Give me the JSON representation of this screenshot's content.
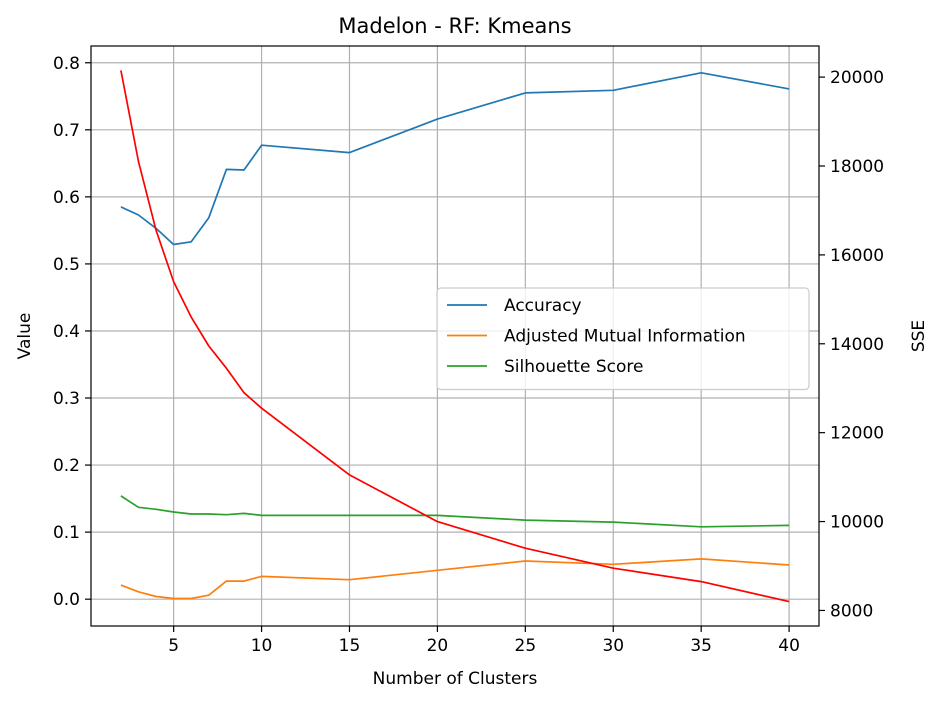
{
  "chart_data": {
    "type": "line",
    "title": "Madelon - RF: Kmeans",
    "xlabel": "Number of Clusters",
    "ylabel": "Value",
    "y2label": "SSE",
    "xlim": [
      0.3,
      41.7
    ],
    "ylim": [
      -0.04,
      0.825
    ],
    "y2lim": [
      7650,
      20700
    ],
    "xticks": [
      5,
      10,
      15,
      20,
      25,
      30,
      35,
      40
    ],
    "yticks": [
      0.0,
      0.1,
      0.2,
      0.3,
      0.4,
      0.5,
      0.6,
      0.7,
      0.8
    ],
    "y2ticks": [
      8000,
      10000,
      12000,
      14000,
      16000,
      18000,
      20000
    ],
    "grid": true,
    "legend_position": "center-right",
    "x": [
      2,
      3,
      4,
      5,
      6,
      7,
      8,
      9,
      10,
      15,
      20,
      25,
      30,
      35,
      40
    ],
    "series": [
      {
        "name": "Accuracy",
        "color": "#1f77b4",
        "axis": "left",
        "in_legend": true,
        "values": [
          0.585,
          0.573,
          0.553,
          0.529,
          0.533,
          0.569,
          0.641,
          0.64,
          0.677,
          0.666,
          0.716,
          0.755,
          0.759,
          0.785,
          0.761
        ]
      },
      {
        "name": "Adjusted Mutual Information",
        "color": "#ff7f0e",
        "axis": "left",
        "in_legend": true,
        "values": [
          0.021,
          0.011,
          0.004,
          0.001,
          0.001,
          0.006,
          0.027,
          0.027,
          0.034,
          0.029,
          0.043,
          0.057,
          0.052,
          0.06,
          0.051
        ]
      },
      {
        "name": "Silhouette Score",
        "color": "#2ca02c",
        "axis": "left",
        "in_legend": true,
        "values": [
          0.154,
          0.137,
          0.134,
          0.13,
          0.127,
          0.127,
          0.126,
          0.128,
          0.125,
          0.125,
          0.125,
          0.118,
          0.115,
          0.108,
          0.11
        ]
      },
      {
        "name": "SSE",
        "color": "#ff0000",
        "axis": "right",
        "in_legend": false,
        "values": [
          20150,
          18100,
          16550,
          15400,
          14600,
          13950,
          13450,
          12900,
          12550,
          11050,
          10000,
          9400,
          8950,
          8650,
          8200
        ]
      }
    ]
  }
}
